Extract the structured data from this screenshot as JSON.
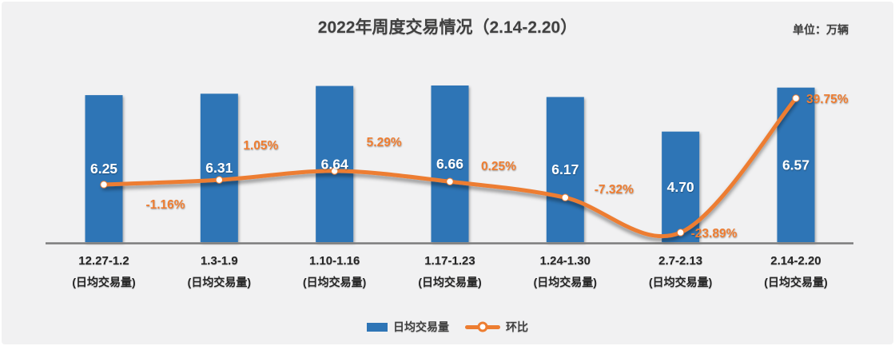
{
  "title": "2022年周度交易情况（2.14-2.20）",
  "unit_label": "单位：万辆",
  "chart_data": {
    "type": "bar",
    "subtype": "bar-line-combo",
    "title": "2022年周度交易情况（2.14-2.20）",
    "unit": "万辆",
    "categories": [
      "12.27-1.2",
      "1.3-1.9",
      "1.10-1.16",
      "1.17-1.23",
      "1.24-1.30",
      "2.7-2.13",
      "2.14-2.20"
    ],
    "category_sublabel": "(日均交易量)",
    "series": [
      {
        "name": "日均交易量",
        "type": "bar",
        "color": "#2E75B6",
        "values": [
          6.25,
          6.31,
          6.64,
          6.66,
          6.17,
          4.7,
          6.57
        ],
        "value_labels": [
          "6.25",
          "6.31",
          "6.64",
          "6.66",
          "6.17",
          "4.70",
          "6.57"
        ]
      },
      {
        "name": "环比",
        "type": "line",
        "color": "#ED7D31",
        "unit": "%",
        "values": [
          -1.16,
          1.05,
          5.29,
          0.25,
          -7.32,
          -23.89,
          39.75
        ],
        "value_labels": [
          "-1.16%",
          "1.05%",
          "5.29%",
          "0.25%",
          "-7.32%",
          "-23.89%",
          "39.75%"
        ]
      }
    ],
    "xlabel": "",
    "ylabel": "",
    "primary_ylim": [
      0,
      7
    ],
    "grid": false,
    "axes_visible": false,
    "legend_position": "bottom",
    "colors": {
      "bar": "#2E75B6",
      "line": "#ED7D31",
      "marker_fill": "#FFFFFF",
      "axis_line": "#7C7C7C",
      "background": "#F1F1F2",
      "title_text": "#404040",
      "bar_value_text": "#FFFFFF",
      "category_text": "#262626"
    }
  },
  "legend": {
    "bar_label": "日均交易量",
    "line_label": "环比"
  }
}
